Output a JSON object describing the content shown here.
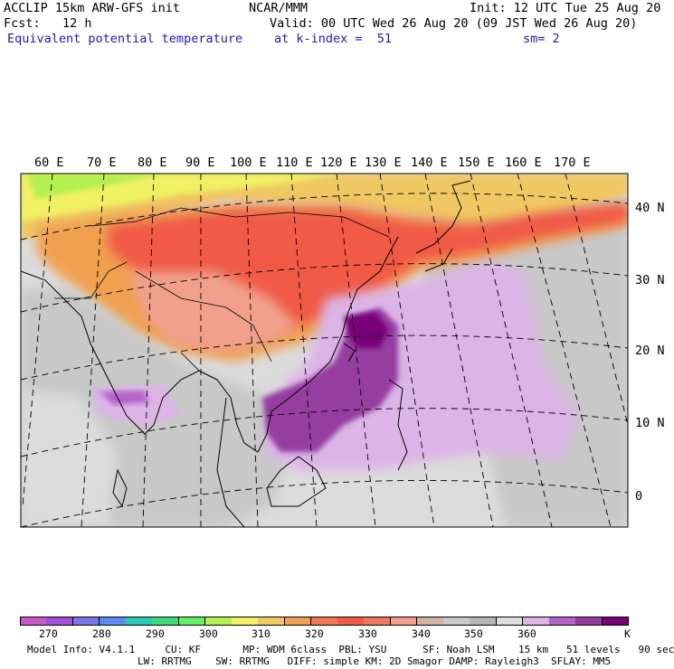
{
  "header": {
    "line1_left": "ACCLIP 15km ARW-GFS init",
    "line1_mid": "NCAR/MMM",
    "line1_right": "Init: 12 UTC Tue 25 Aug 20",
    "line2_left": "Fcst:   12 h",
    "line2_right": "Valid: 00 UTC Wed 26 Aug 20 (09 JST Wed 26 Aug 20)",
    "line3_left": "Equivalent potential temperature",
    "line3_mid": "at k-index =  51",
    "line3_right": "sm= 2"
  },
  "map": {
    "lon_labels": [
      "60 E",
      "70 E",
      "80 E",
      "90 E",
      "100 E",
      "110 E",
      "120 E",
      "130 E",
      "140 E",
      "150 E",
      "160 E",
      "170 E"
    ],
    "lat_labels": [
      "40 N",
      "30 N",
      "20 N",
      "10 N",
      "0"
    ]
  },
  "colorbar": {
    "colors": [
      "#c85ac8",
      "#a050dc",
      "#7878e6",
      "#5a8cf0",
      "#28c8b4",
      "#3cdc78",
      "#64f064",
      "#b4f050",
      "#f0f064",
      "#f0c864",
      "#f0a050",
      "#f07850",
      "#f05a46",
      "#f07860",
      "#f0a08c",
      "#d2b4a0",
      "#c8c8c8",
      "#b4b4b4",
      "#dcdcdc",
      "#dcb4e6",
      "#b464c8",
      "#963ca0",
      "#780078"
    ],
    "tick_labels": [
      "270",
      "280",
      "290",
      "300",
      "310",
      "320",
      "330",
      "340",
      "350",
      "360"
    ],
    "unit": "K"
  },
  "footer": {
    "line1": "Model Info: V4.1.1     CU: KF       MP: WDM 6class  PBL: YSU      SF: Noah LSM    15 km   51 levels   90 sec",
    "line2": "LW: RRTMG    SW: RRTMG   DIFF: simple KM: 2D Smagor DAMP: Rayleigh3  SFLAY: MM5"
  }
}
